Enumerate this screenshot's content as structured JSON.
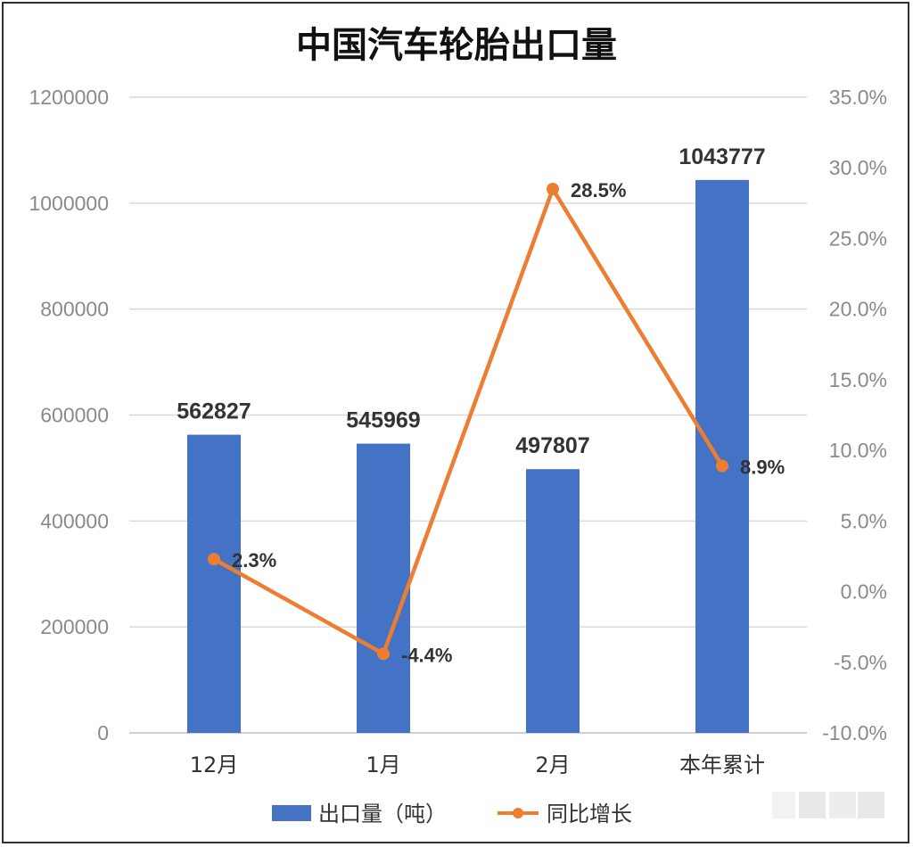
{
  "chart_data": {
    "type": "bar",
    "title": "中国汽车轮胎出口量",
    "categories": [
      "12月",
      "1月",
      "2月",
      "本年累计"
    ],
    "series": [
      {
        "name": "出口量（吨）",
        "type": "bar",
        "axis": "left",
        "color": "#4472c4",
        "values": [
          562827,
          545969,
          497807,
          1043777
        ],
        "labels": [
          "562827",
          "545969",
          "497807",
          "1043777"
        ]
      },
      {
        "name": "同比增长",
        "type": "line",
        "axis": "right",
        "color": "#ed7d31",
        "values": [
          2.3,
          -4.4,
          28.5,
          8.9
        ],
        "labels": [
          "2.3%",
          "-4.4%",
          "28.5%",
          "8.9%"
        ]
      }
    ],
    "y_left": {
      "ylim": [
        0,
        1200000
      ],
      "ticks": [
        "0",
        "200000",
        "400000",
        "600000",
        "800000",
        "1000000",
        "1200000"
      ]
    },
    "y_right": {
      "ylim": [
        -10,
        35
      ],
      "ticks": [
        "-10.0%",
        "-5.0%",
        "0.0%",
        "5.0%",
        "10.0%",
        "15.0%",
        "20.0%",
        "25.0%",
        "30.0%",
        "35.0%"
      ]
    },
    "grid": true,
    "legend_position": "bottom"
  }
}
